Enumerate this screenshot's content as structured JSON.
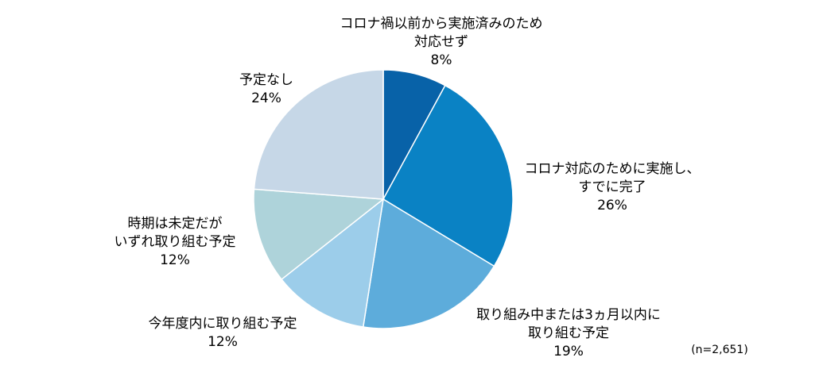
{
  "chart_data": {
    "type": "pie",
    "categories": [
      [
        "コロナ禍以前から実施済みのため",
        "対応せず"
      ],
      [
        "コロナ対応のために実施し、",
        "すでに完了"
      ],
      [
        "取り組み中または3ヵ月以内に",
        "取り組む予定"
      ],
      [
        "今年度内に取り組む予定"
      ],
      [
        "時期は未定だが",
        "いずれ取り組む予定"
      ],
      [
        "予定なし"
      ]
    ],
    "values": [
      8,
      26,
      19,
      12,
      12,
      24
    ],
    "value_labels": [
      "8%",
      "26%",
      "19%",
      "12%",
      "12%",
      "24%"
    ],
    "colors": [
      "#0862a8",
      "#0a82c4",
      "#5dacdb",
      "#9ccdea",
      "#aed3da",
      "#c6d7e7"
    ],
    "note": "(n=2,651)"
  }
}
